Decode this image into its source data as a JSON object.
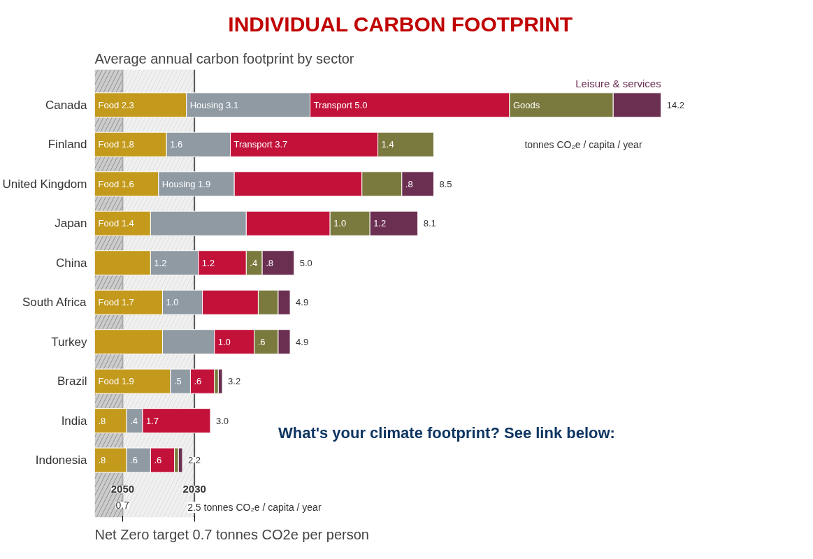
{
  "chart_data": {
    "type": "bar",
    "orientation": "horizontal",
    "stacked": true,
    "title": "INDIVIDUAL CARBON FOOTPRINT",
    "subtitle": "Average annual carbon footprint by sector",
    "categories": [
      "Canada",
      "Finland",
      "United Kingdom",
      "Japan",
      "China",
      "South Africa",
      "Turkey",
      "Brazil",
      "India",
      "Indonesia"
    ],
    "series": [
      {
        "color": "#c49a1c",
        "values": [
          2.3,
          1.8,
          1.6,
          1.4,
          1.4,
          1.7,
          1.7,
          1.9,
          0.8,
          0.8
        ],
        "value_labels": [
          "Food 2.3",
          "Food 1.8",
          "Food 1.6",
          "Food 1.4",
          null,
          "Food 1.7",
          null,
          "Food 1.9",
          ".8",
          ".8"
        ]
      },
      {
        "color": "#8f9aa3",
        "values": [
          3.1,
          1.6,
          1.9,
          2.4,
          1.2,
          1.0,
          1.3,
          0.5,
          0.4,
          0.6
        ],
        "value_labels": [
          "Housing 3.1",
          "1.6",
          "Housing 1.9",
          null,
          "1.2",
          "1.0",
          null,
          ".5",
          ".4",
          ".6"
        ]
      },
      {
        "color": "#c2123a",
        "values": [
          5.0,
          3.7,
          3.2,
          2.1,
          1.2,
          1.4,
          1.0,
          0.6,
          1.7,
          0.6
        ],
        "value_labels": [
          "Transport 5.0",
          "Transport 3.7",
          null,
          null,
          "1.2",
          null,
          "1.0",
          ".6",
          "1.7",
          ".6"
        ]
      },
      {
        "color": "#7a7a3e",
        "values": [
          2.6,
          1.4,
          1.0,
          1.0,
          0.4,
          0.5,
          0.6,
          0.1,
          null,
          0.1
        ],
        "value_labels": [
          "Goods",
          "1.4",
          null,
          "1.0",
          ".4",
          null,
          ".6",
          null,
          null,
          null
        ]
      },
      {
        "name": "Leisure & services",
        "color": "#6b2f52",
        "values": [
          1.2,
          null,
          0.8,
          1.2,
          0.8,
          0.3,
          0.3,
          0.1,
          null,
          0.1
        ],
        "value_labels": [
          null,
          null,
          ".8",
          "1.2",
          ".8",
          null,
          null,
          null,
          null,
          null
        ]
      }
    ],
    "totals": [
      "14.2",
      null,
      "8.5",
      "8.1",
      "5.0",
      "4.9",
      "4.9",
      "3.2",
      "3.0",
      "2.2"
    ],
    "xticks": [
      {
        "value": 0.7,
        "label": "0.7"
      },
      {
        "value": 2.5,
        "label": "2.5 tonnes CO₂e / capita / year"
      }
    ],
    "tick_labels": "y",
    "ref_lines": [
      {
        "axis": "x",
        "value": 0.7,
        "color": "#aaaaaa"
      },
      {
        "axis": "x",
        "value": 2.5,
        "color": "#555555"
      }
    ],
    "bands": [
      {
        "axis": "x",
        "from": 0,
        "to": 0.7,
        "color": "#555555"
      },
      {
        "axis": "x",
        "from": 0.7,
        "to": 2.5,
        "color": "#cccccc"
      }
    ],
    "grid": false,
    "annotations": [
      "Net Zero target 0.7 tonnes CO2e per person",
      "What's your climate footprint? See link below:",
      "tonnes CO₂e / capita / year",
      {
        "text": "2050",
        "x": 0.7
      },
      {
        "text": "2030",
        "x": 2.5
      }
    ]
  }
}
